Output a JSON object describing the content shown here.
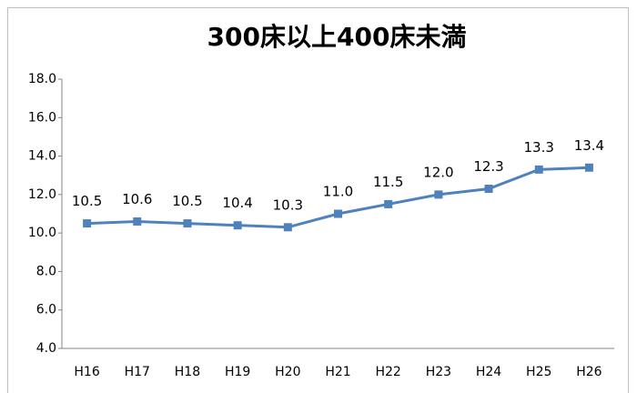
{
  "chart_data": {
    "type": "line",
    "title": "300床以上400床未満",
    "categories": [
      "H16",
      "H17",
      "H18",
      "H19",
      "H20",
      "H21",
      "H22",
      "H23",
      "H24",
      "H25",
      "H26"
    ],
    "series": [
      {
        "name": "300床以上400床未満",
        "color": "#4f81bd",
        "values": [
          10.5,
          10.6,
          10.5,
          10.4,
          10.3,
          11.0,
          11.5,
          12.0,
          12.3,
          13.3,
          13.4
        ],
        "value_labels": [
          "10.5",
          "10.6",
          "10.5",
          "10.4",
          "10.3",
          "11.0",
          "11.5",
          "12.0",
          "12.3",
          "13.3",
          "13.4"
        ]
      }
    ],
    "ylim": [
      4,
      18
    ],
    "yticks": [
      {
        "value": 4,
        "label": "4.0"
      },
      {
        "value": 6,
        "label": "6.0"
      },
      {
        "value": 8,
        "label": "8.0"
      },
      {
        "value": 10,
        "label": "10.0"
      },
      {
        "value": 12,
        "label": "12.0"
      },
      {
        "value": 14,
        "label": "14.0"
      },
      {
        "value": 16,
        "label": "16.0"
      },
      {
        "value": 18,
        "label": "18.0"
      }
    ],
    "grid": false,
    "legend": false
  }
}
